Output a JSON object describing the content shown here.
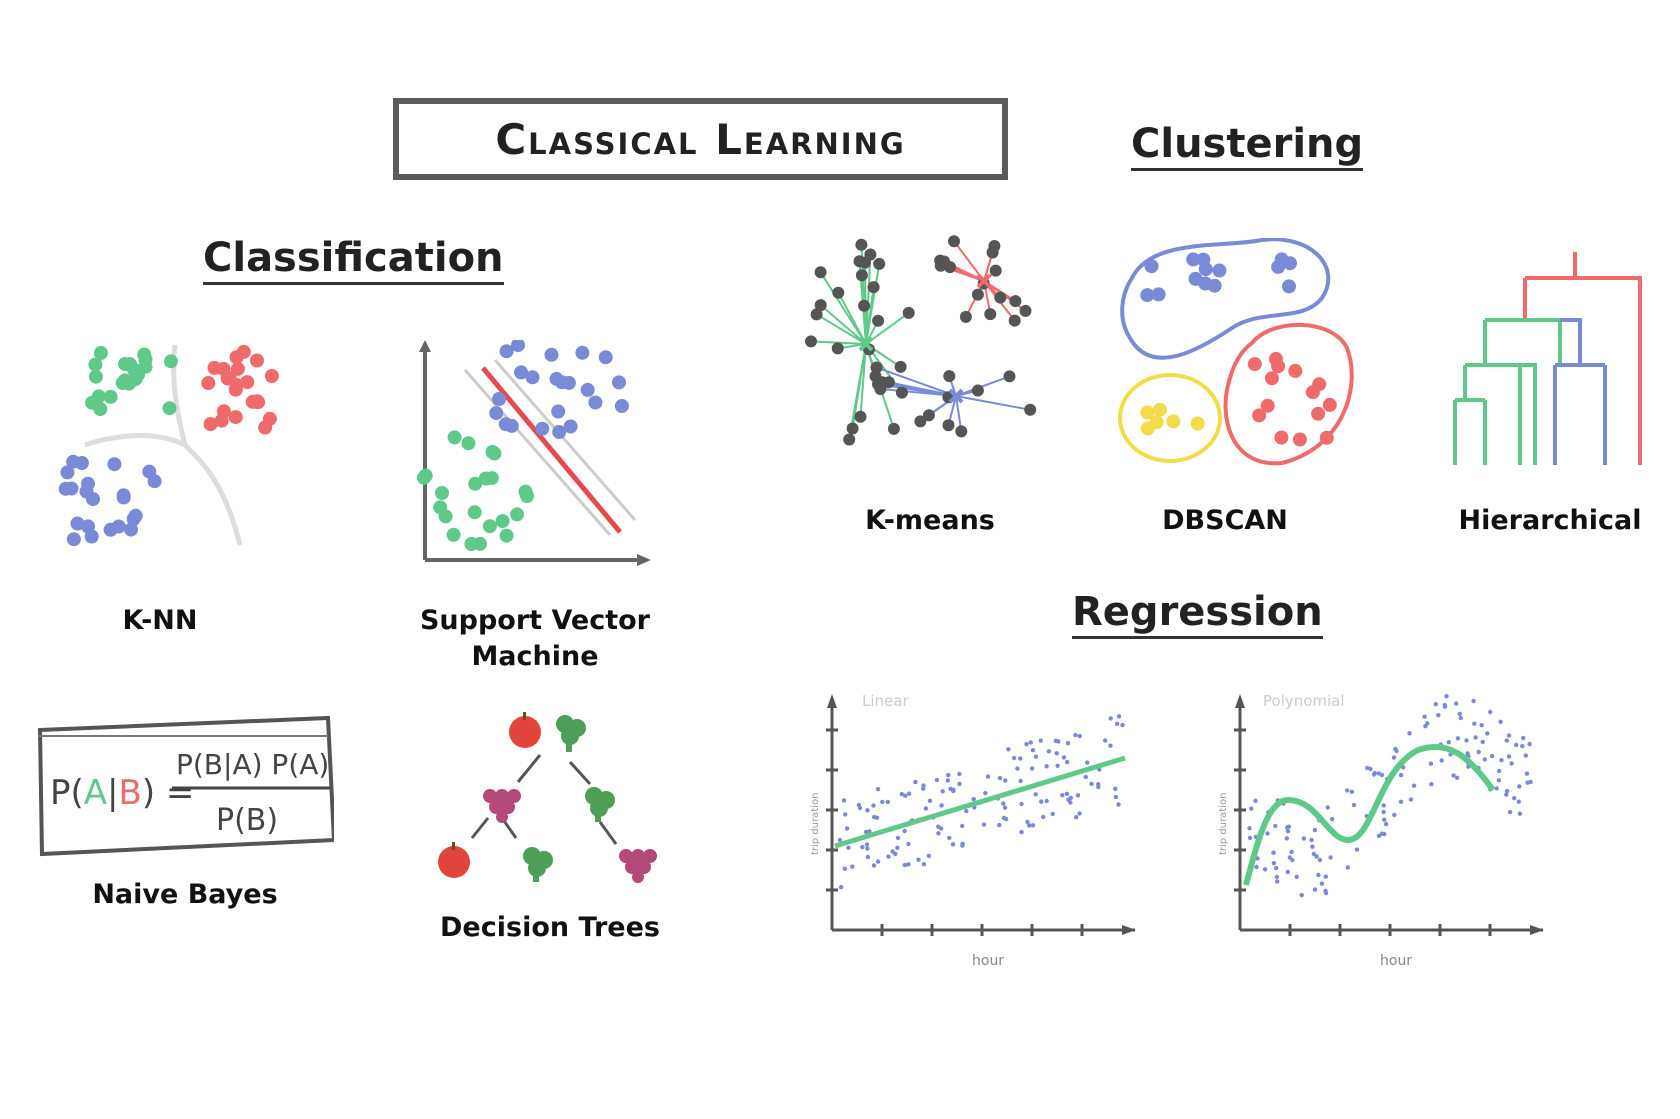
{
  "title": "Classical Learning",
  "sections": {
    "classification": "Classification",
    "clustering": "Clustering",
    "regression": "Regression"
  },
  "classification_methods": {
    "knn": "K-NN",
    "svm_line1": "Support Vector",
    "svm_line2": "Machine",
    "naive_bayes": "Naive Bayes",
    "decision_trees": "Decision Trees"
  },
  "bayes_formula": {
    "lhs_p": "P(",
    "lhs_a": "A",
    "lhs_bar": "|",
    "lhs_b": "B",
    "lhs_close": ") =",
    "numerator": "P(B|A) P(A)",
    "denominator": "P(B)"
  },
  "clustering_methods": {
    "kmeans": "K-means",
    "dbscan": "DBSCAN",
    "hierarchical": "Hierarchical"
  },
  "regression_plots": {
    "linear": "Linear",
    "polynomial": "Polynomial",
    "xlabel": "hour",
    "ylabel": "trip duration"
  },
  "colors": {
    "green": "#5fc98a",
    "red": "#ef6b6b",
    "blue": "#7a8ad6",
    "yellow": "#f2dc4a",
    "gray": "#555555"
  }
}
